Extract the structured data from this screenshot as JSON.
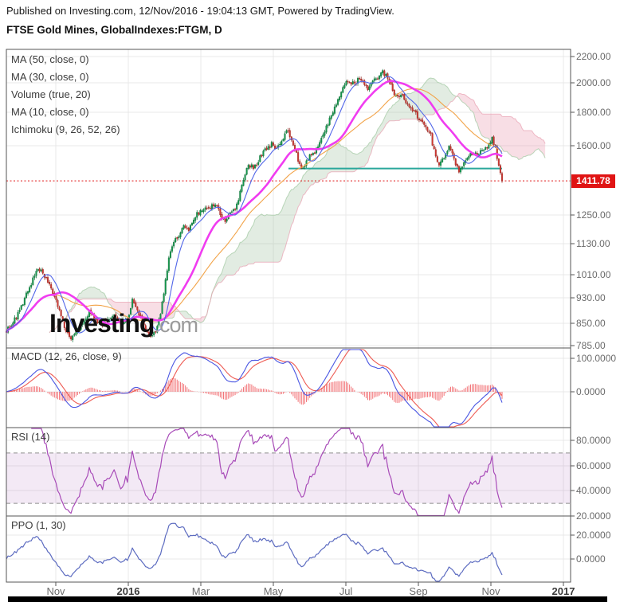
{
  "header": {
    "published": "Published on Investing.com, 12/Nov/2016 - 19:04:13 GMT, Powered by TradingView.",
    "title": "FTSE Gold Mines, GlobalIndexes:FTGM, D"
  },
  "watermark": {
    "brand": "Investing",
    "suffix": ".com"
  },
  "price_badge": "1411.78",
  "colors": {
    "up_candle": "#149a4e",
    "up_border": "#0b6b33",
    "down_candle": "#d63a33",
    "down_border": "#8e1f1a",
    "ma10": "#5166e8",
    "ma30": "#f03cf0",
    "ma50": "#f2a348",
    "cloud_bull": "rgba(150,185,150,0.28)",
    "cloud_bear": "rgba(236,160,180,0.35)",
    "spanA_line": "#9fc79f",
    "spanB_line": "#e8a0b0",
    "support": "#2aa79b",
    "last_price": "#e01414",
    "macd_line": "#4a56e2",
    "macd_signal": "#ee5a52",
    "macd_hist": "#f05a5f",
    "rsi_line": "#a84bb8",
    "rsi_band": "rgba(155,70,175,0.12)",
    "rsi_dash": "#8d8d8d",
    "ppo_line": "#5c6bc0",
    "grid": "#e9e9e9",
    "border": "#565656",
    "axis_text": "#6b6b6b"
  },
  "chart_data": [
    {
      "panel": "price",
      "type": "candlestick",
      "title": "FTSE Gold Mines, GlobalIndexes:FTGM, D",
      "timeframe": "D",
      "legend": [
        "MA (50, close, 0)",
        "MA (30, close, 0)",
        "Volume (true, 20)",
        "MA (10, close, 0)",
        "Ichimoku (9, 26, 52, 26)"
      ],
      "y_axis": {
        "scale": "log",
        "ticks": [
          "2200.00",
          "2000.00",
          "1800.00",
          "1600.00",
          "1250.00",
          "1130.00",
          "1010.00",
          "930.00",
          "850.00",
          "785.00"
        ],
        "tick_values": [
          2200,
          2000,
          1800,
          1600,
          1250,
          1130,
          1010,
          930,
          850,
          785
        ],
        "range": [
          785,
          2300
        ]
      },
      "x_axis": {
        "labels": [
          "Nov",
          "2016",
          "Mar",
          "May",
          "Jul",
          "Sep",
          "Nov",
          "2017"
        ],
        "bold": [
          false,
          true,
          false,
          false,
          false,
          false,
          false,
          true
        ],
        "range": [
          "Sep 2015",
          "Jan 2017"
        ]
      },
      "last_price": 1411.78,
      "support_line": {
        "price": 1475,
        "span": "May 2016 to Nov 2016"
      },
      "price_path_anchors": [
        [
          8,
          830
        ],
        [
          18,
          858
        ],
        [
          28,
          905
        ],
        [
          38,
          975
        ],
        [
          48,
          1032
        ],
        [
          56,
          1005
        ],
        [
          64,
          958
        ],
        [
          72,
          905
        ],
        [
          80,
          848
        ],
        [
          88,
          802
        ],
        [
          96,
          818
        ],
        [
          104,
          850
        ],
        [
          112,
          882
        ],
        [
          120,
          858
        ],
        [
          128,
          845
        ],
        [
          136,
          868
        ],
        [
          144,
          878
        ],
        [
          152,
          842
        ],
        [
          160,
          862
        ],
        [
          166,
          920
        ],
        [
          172,
          892
        ],
        [
          180,
          845
        ],
        [
          188,
          805
        ],
        [
          194,
          818
        ],
        [
          200,
          862
        ],
        [
          206,
          950
        ],
        [
          212,
          1075
        ],
        [
          218,
          1130
        ],
        [
          224,
          1165
        ],
        [
          230,
          1198
        ],
        [
          236,
          1178
        ],
        [
          242,
          1225
        ],
        [
          248,
          1258
        ],
        [
          254,
          1282
        ],
        [
          260,
          1270
        ],
        [
          266,
          1292
        ],
        [
          272,
          1305
        ],
        [
          277,
          1235
        ],
        [
          282,
          1222
        ],
        [
          288,
          1252
        ],
        [
          294,
          1268
        ],
        [
          300,
          1335
        ],
        [
          306,
          1420
        ],
        [
          312,
          1495
        ],
        [
          318,
          1478
        ],
        [
          324,
          1518
        ],
        [
          330,
          1560
        ],
        [
          336,
          1595
        ],
        [
          342,
          1610
        ],
        [
          348,
          1578
        ],
        [
          354,
          1638
        ],
        [
          360,
          1698
        ],
        [
          366,
          1645
        ],
        [
          372,
          1552
        ],
        [
          378,
          1478
        ],
        [
          384,
          1502
        ],
        [
          390,
          1552
        ],
        [
          396,
          1575
        ],
        [
          402,
          1618
        ],
        [
          408,
          1692
        ],
        [
          414,
          1758
        ],
        [
          420,
          1832
        ],
        [
          426,
          1905
        ],
        [
          432,
          1975
        ],
        [
          438,
          2022
        ],
        [
          444,
          1988
        ],
        [
          450,
          2035
        ],
        [
          456,
          1998
        ],
        [
          462,
          1962
        ],
        [
          468,
          2005
        ],
        [
          474,
          2048
        ],
        [
          480,
          2085
        ],
        [
          486,
          2038
        ],
        [
          492,
          1958
        ],
        [
          498,
          1902
        ],
        [
          504,
          1928
        ],
        [
          510,
          1868
        ],
        [
          516,
          1820
        ],
        [
          522,
          1788
        ],
        [
          528,
          1752
        ],
        [
          534,
          1712
        ],
        [
          540,
          1668
        ],
        [
          546,
          1545
        ],
        [
          552,
          1492
        ],
        [
          558,
          1548
        ],
        [
          564,
          1602
        ],
        [
          570,
          1518
        ],
        [
          576,
          1452
        ],
        [
          582,
          1498
        ],
        [
          588,
          1545
        ],
        [
          594,
          1568
        ],
        [
          600,
          1552
        ],
        [
          606,
          1575
        ],
        [
          612,
          1598
        ],
        [
          617,
          1642
        ],
        [
          621,
          1605
        ],
        [
          624,
          1528
        ],
        [
          627,
          1462
        ],
        [
          630,
          1411.78
        ]
      ]
    },
    {
      "panel": "macd",
      "type": "line+histogram",
      "title": "MACD (12, 26, close, 9)",
      "params": [
        12,
        26,
        "close",
        9
      ],
      "y_ticks": [
        "100.0000",
        "0.0000"
      ],
      "y_tick_values": [
        100,
        0
      ],
      "derived_from": "price_path_anchors"
    },
    {
      "panel": "rsi",
      "type": "line",
      "title": "RSI (14)",
      "period": 14,
      "y_ticks": [
        "80.0000",
        "60.0000",
        "40.0000",
        "20.0000"
      ],
      "y_tick_values": [
        80,
        60,
        40,
        20
      ],
      "band": [
        70,
        30
      ],
      "derived_from": "price_path_anchors"
    },
    {
      "panel": "ppo",
      "type": "line",
      "title": "PPO (1, 30)",
      "params": [
        1,
        30
      ],
      "y_ticks": [
        "20.0000",
        "0.0000"
      ],
      "y_tick_values": [
        20,
        0
      ],
      "derived_from": "price_path_anchors"
    }
  ]
}
